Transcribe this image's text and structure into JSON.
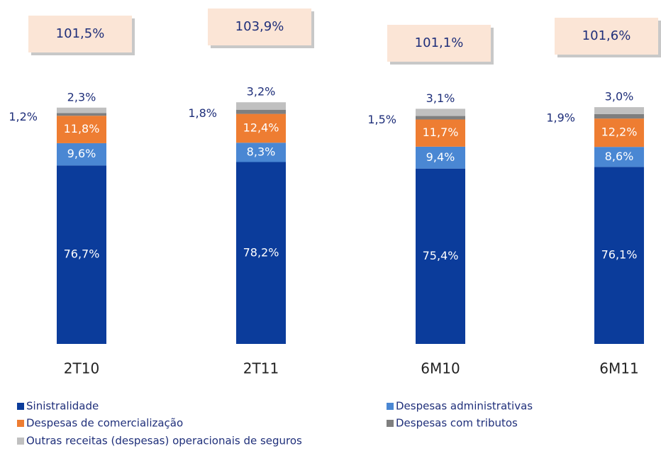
{
  "chart_data": {
    "type": "bar",
    "stacked": true,
    "categories": [
      "2T10",
      "2T11",
      "6M10",
      "6M11"
    ],
    "series": [
      {
        "name": "Sinistralidade",
        "color": "#0b3c9b",
        "values": [
          76.7,
          78.2,
          75.4,
          76.1
        ],
        "value_labels": [
          "76,7%",
          "78,2%",
          "75,4%",
          "76,1%"
        ]
      },
      {
        "name": "Despesas administrativas",
        "color": "#4a87d3",
        "values": [
          9.6,
          8.3,
          9.4,
          8.6
        ],
        "value_labels": [
          "9,6%",
          "8,3%",
          "9,4%",
          "8,6%"
        ]
      },
      {
        "name": "Despesas de comercialização",
        "color": "#ee7d32",
        "values": [
          11.8,
          12.4,
          11.7,
          12.2
        ],
        "value_labels": [
          "11,8%",
          "12,4%",
          "11,7%",
          "12,2%"
        ]
      },
      {
        "name": "Despesas com tributos",
        "color": "#7f7f7f",
        "values": [
          1.2,
          1.8,
          1.5,
          1.9
        ],
        "value_labels": [
          "1,2%",
          "1,8%",
          "1,5%",
          "1,9%"
        ]
      },
      {
        "name": "Outras receitas (despesas) operacionais de seguros",
        "color": "#c0c0c0",
        "values": [
          2.3,
          3.2,
          3.1,
          3.0
        ],
        "value_labels": [
          "2,3%",
          "3,2%",
          "3,1%",
          "3,0%"
        ]
      }
    ],
    "totals": [
      101.5,
      103.9,
      101.1,
      101.6
    ],
    "total_labels": [
      "101,5%",
      "103,9%",
      "101,1%",
      "101,6%"
    ]
  }
}
